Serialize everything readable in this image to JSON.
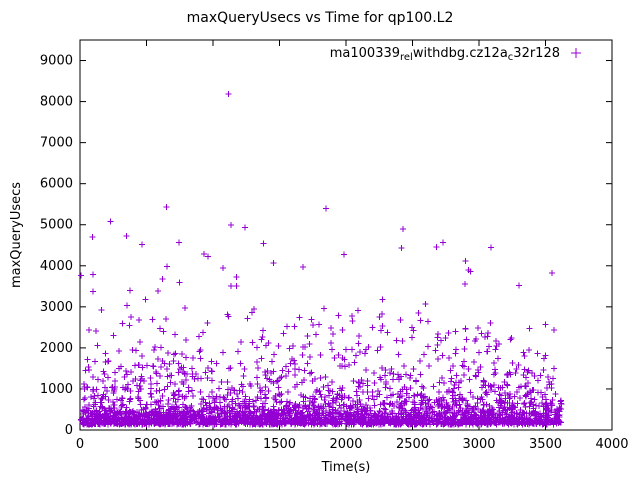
{
  "chart_data": {
    "type": "scatter",
    "title": "maxQueryUsecs vs Time for qp100.L2",
    "xlabel": "Time(s)",
    "ylabel": "maxQueryUsecs",
    "xlim": [
      0,
      4000
    ],
    "ylim": [
      0,
      9500
    ],
    "xticks": [
      0,
      500,
      1000,
      1500,
      2000,
      2500,
      3000,
      3500,
      4000
    ],
    "yticks": [
      0,
      1000,
      2000,
      3000,
      4000,
      5000,
      6000,
      7000,
      8000,
      9000
    ],
    "grid": false,
    "background": "#ffffff",
    "marker": "plus",
    "marker_color": "#9400d3",
    "series_name_plain": "ma100339_rel_withdbg.cz12a_c32r128",
    "legend": {
      "position": "top-right-inside",
      "segments": [
        {
          "text": "ma100339",
          "sub": false
        },
        {
          "text": "rel",
          "sub": true
        },
        {
          "text": "withdbg.cz12a",
          "sub": false
        },
        {
          "text": "c",
          "sub": true
        },
        {
          "text": "32r128",
          "sub": false
        }
      ]
    },
    "outliers": [
      [
        95,
        4700
      ],
      [
        230,
        5080
      ],
      [
        350,
        4730
      ],
      [
        650,
        5430
      ],
      [
        1115,
        8190
      ],
      [
        1135,
        4990
      ],
      [
        1240,
        4930
      ],
      [
        1850,
        5400
      ],
      [
        2430,
        4900
      ],
      [
        2900,
        4120
      ],
      [
        3090,
        4450
      ],
      [
        3300,
        3520
      ],
      [
        3550,
        3820
      ]
    ],
    "point_generator": {
      "seed": 1337,
      "n": 3000,
      "x_min": 5,
      "x_max": 3620,
      "y_floor": 130,
      "y_cap": 4600,
      "components": [
        {
          "w": 0.55,
          "scale": 200
        },
        {
          "w": 0.3,
          "scale": 700
        },
        {
          "w": 0.15,
          "scale": 1300
        }
      ]
    }
  }
}
